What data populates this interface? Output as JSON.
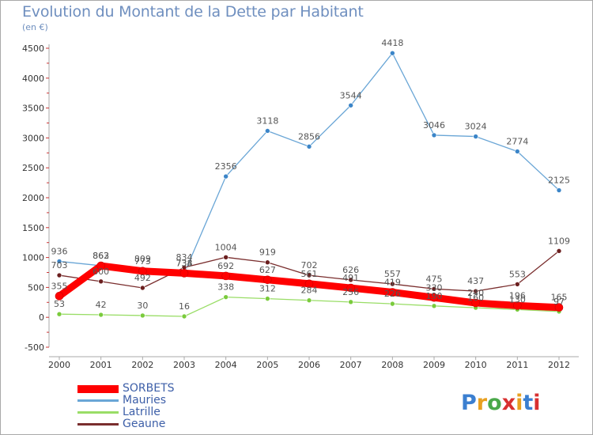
{
  "title": "Evolution du Montant de la Dette par Habitant",
  "subtitle": "(en €)",
  "logo_text": "Proxiti",
  "colors": {
    "frame_border": "#a9a9a9",
    "axis": "#a9a9a9",
    "tick_label": "#333333",
    "data_label": "#555555",
    "title": "#6f8fbf"
  },
  "chart_data": {
    "type": "line",
    "title": "Evolution du Montant de la Dette par Habitant",
    "subtitle": "(en €)",
    "x": [
      "2000",
      "2001",
      "2002",
      "2003",
      "2004",
      "2005",
      "2006",
      "2007",
      "2008",
      "2009",
      "2010",
      "2011",
      "2012"
    ],
    "ylim": [
      -500,
      4500
    ],
    "yticks": [
      -500,
      0,
      500,
      1000,
      1500,
      2000,
      2500,
      3000,
      3500,
      4000,
      4500
    ],
    "grid": false,
    "legend_position": "bottom-left",
    "series": [
      {
        "name": "Mauries",
        "color": "#6aa6d6",
        "dot_color": "#3b85c8",
        "values": [
          936,
          863,
          809,
          734,
          2356,
          3118,
          2856,
          3544,
          4418,
          3046,
          3024,
          2774,
          2125
        ],
        "labels": [
          "936",
          "863",
          "809",
          "734",
          "2356",
          "3118",
          "2856",
          "3544",
          "4418",
          "3046",
          "3024",
          "2774",
          "2125"
        ]
      },
      {
        "name": "Geaune",
        "color": "#7a2e2e",
        "dot_color": "#6b1f1f",
        "values": [
          703,
          600,
          492,
          834,
          1004,
          919,
          702,
          626,
          557,
          475,
          437,
          553,
          1109
        ],
        "labels": [
          "703",
          "600",
          "492",
          "834",
          "1004",
          "919",
          "702",
          "626",
          "557",
          "475",
          "437",
          "553",
          "1109"
        ]
      },
      {
        "name": "Latrille",
        "color": "#99dd66",
        "dot_color": "#7acb3c",
        "values": [
          53,
          42,
          30,
          16,
          338,
          312,
          284,
          256,
          226,
          190,
          160,
          130,
          97
        ],
        "labels": [
          "53",
          "42",
          "30",
          "16",
          "338",
          "312",
          "284",
          "256",
          "226",
          "190",
          "160",
          "130",
          "97"
        ]
      },
      {
        "name": "SORBETS",
        "color": "#ff0000",
        "dot_color": "#ff0000",
        "thick": true,
        "values": [
          355,
          862,
          773,
          738,
          692,
          627,
          561,
          491,
          419,
          330,
          240,
          196,
          165
        ],
        "labels": [
          "355",
          "862",
          "773",
          "738",
          "692",
          "627",
          "561",
          "491",
          "419",
          "330",
          "240",
          "196",
          "165"
        ]
      }
    ]
  },
  "legend": [
    {
      "name": "SORBETS",
      "color": "#ff0000",
      "thick": true
    },
    {
      "name": "Mauries",
      "color": "#6aa6d6",
      "thick": false
    },
    {
      "name": "Latrille",
      "color": "#99dd66",
      "thick": false
    },
    {
      "name": "Geaune",
      "color": "#7a2e2e",
      "thick": false
    }
  ]
}
